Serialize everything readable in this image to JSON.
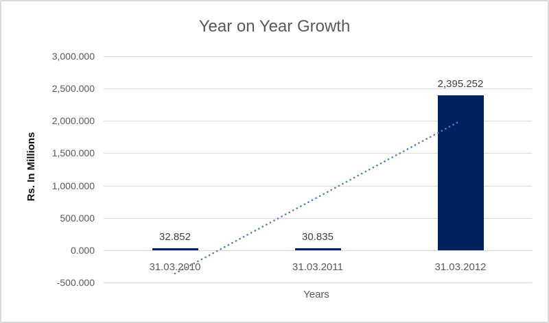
{
  "chart_data": {
    "type": "bar",
    "title": "Year on Year Growth",
    "xlabel": "Years",
    "ylabel": "Rs. In Millions",
    "categories": [
      "31.03.2010",
      "31.03.2011",
      "31.03.2012"
    ],
    "values": [
      32.852,
      30.835,
      2395.252
    ],
    "data_labels": [
      "32.852",
      "30.835",
      "2,395.252"
    ],
    "series": [
      {
        "name": "Rs. In Millions",
        "values": [
          32.852,
          30.835,
          2395.252
        ]
      }
    ],
    "y_ticks": [
      {
        "value": 3000,
        "label": "3,000.000"
      },
      {
        "value": 2500,
        "label": "2,500.000"
      },
      {
        "value": 2000,
        "label": "2,000.000"
      },
      {
        "value": 1500,
        "label": "1,500.000"
      },
      {
        "value": 1000,
        "label": "1,000.000"
      },
      {
        "value": 500,
        "label": "500.000"
      },
      {
        "value": 0,
        "label": "0.000"
      },
      {
        "value": -500,
        "label": "-500.000"
      }
    ],
    "ylim": [
      -500,
      3000
    ],
    "grid": true,
    "legend": "none",
    "trendline": {
      "type": "linear",
      "style": "dotted"
    },
    "colors": {
      "bar": "#002060",
      "trendline": "#4e81bd",
      "gridline": "#d9d9d9",
      "border": "#d9d9d9",
      "title_text": "#595959",
      "tick_text": "#595959",
      "data_label_text": "#404040",
      "background": "#ffffff"
    }
  }
}
